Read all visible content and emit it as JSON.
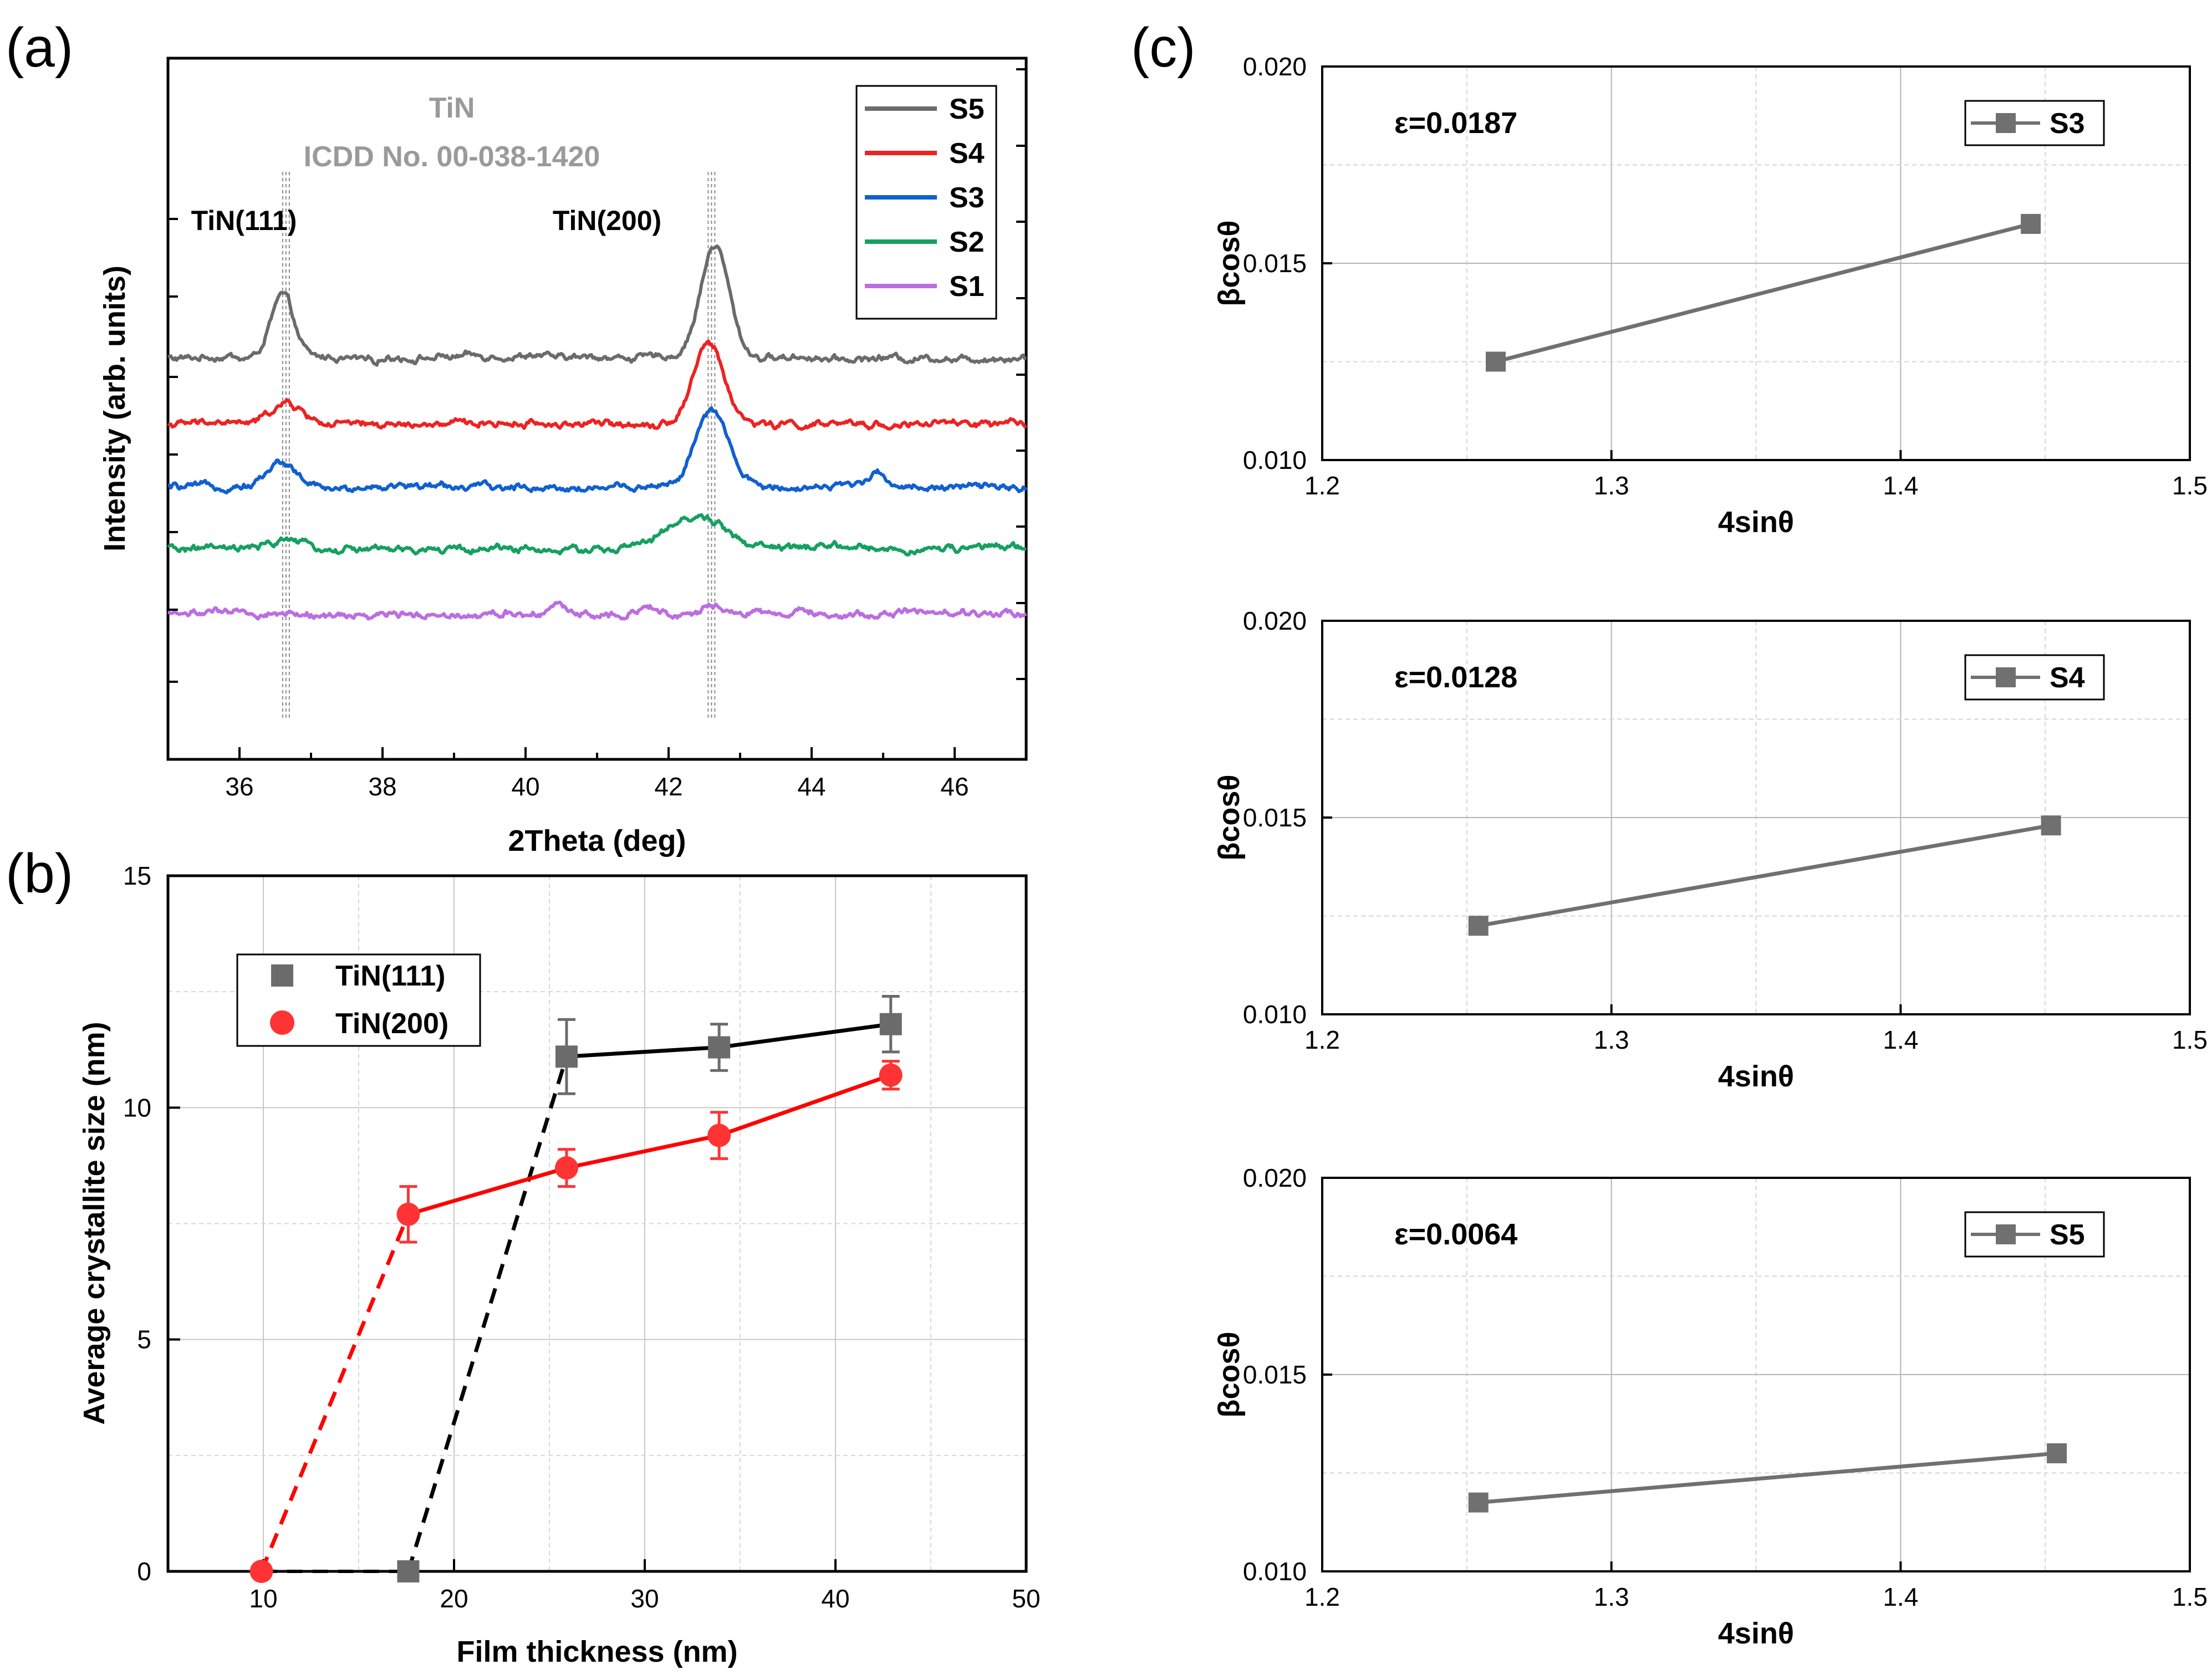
{
  "chart_data": [
    {
      "panel": "(a)",
      "type": "line",
      "xlabel": "2Theta (deg)",
      "ylabel": "Intensity (arb. units)",
      "xlim": [
        35,
        47
      ],
      "xticks": [
        36,
        38,
        40,
        42,
        44,
        46
      ],
      "reference_title": "TiN",
      "reference_card": "ICDD No. 00-038-1420",
      "peak_labels": [
        {
          "text": "TiN(111)",
          "x": 36.65
        },
        {
          "text": "TiN(200)",
          "x": 42.6
        }
      ],
      "reference_positions": [
        36.65,
        42.6
      ],
      "legend": [
        "S5",
        "S4",
        "S3",
        "S2",
        "S1"
      ],
      "colors": {
        "S5": "#6b6b6b",
        "S4": "#ee2222",
        "S3": "#1060d0",
        "S2": "#16a060",
        "S1": "#bb6ee0"
      },
      "series": [
        {
          "name": "S5",
          "baseline": 1.0,
          "peaks": [
            {
              "x": 36.6,
              "h": 0.38,
              "w": 0.22
            },
            {
              "x": 42.65,
              "h": 0.68,
              "w": 0.28
            }
          ]
        },
        {
          "name": "S4",
          "baseline": 0.6,
          "peaks": [
            {
              "x": 36.65,
              "h": 0.12,
              "w": 0.3
            },
            {
              "x": 42.55,
              "h": 0.49,
              "w": 0.3
            }
          ]
        },
        {
          "name": "S3",
          "baseline": 0.22,
          "peaks": [
            {
              "x": 36.6,
              "h": 0.15,
              "w": 0.3
            },
            {
              "x": 42.6,
              "h": 0.46,
              "w": 0.32
            },
            {
              "x": 44.9,
              "h": 0.08,
              "w": 0.2
            }
          ]
        },
        {
          "name": "S2",
          "baseline": -0.15,
          "peaks": [
            {
              "x": 36.7,
              "h": 0.06,
              "w": 0.25
            },
            {
              "x": 42.4,
              "h": 0.19,
              "w": 0.55
            }
          ]
        },
        {
          "name": "S1",
          "baseline": -0.54,
          "peaks": [
            {
              "x": 40.4,
              "h": 0.06,
              "w": 0.15
            },
            {
              "x": 41.7,
              "h": 0.05,
              "w": 0.2
            },
            {
              "x": 42.6,
              "h": 0.05,
              "w": 0.15
            }
          ]
        }
      ]
    },
    {
      "panel": "(b)",
      "type": "line",
      "xlabel": "Film thickness (nm)",
      "ylabel": "Average crystallite size (nm)",
      "xlim": [
        5,
        50
      ],
      "ylim": [
        0,
        15
      ],
      "xticks": [
        10,
        20,
        30,
        40,
        50
      ],
      "yticks": [
        0,
        5,
        10,
        15
      ],
      "series": [
        {
          "name": "TiN(111)",
          "color": "#6b6b6b",
          "line_color": "#000000",
          "marker": "square",
          "x": [
            17.6,
            25.9,
            33.9,
            42.9
          ],
          "y": [
            0,
            11.1,
            11.3,
            11.8
          ],
          "err": [
            0,
            0.8,
            0.5,
            0.6
          ],
          "dashed_from": 17.6
        },
        {
          "name": "TiN(200)",
          "color": "#ff3333",
          "line_color": "#ff0000",
          "marker": "circle",
          "x": [
            9.9,
            17.6,
            25.9,
            33.9,
            42.9
          ],
          "y": [
            0,
            7.7,
            8.7,
            9.4,
            10.7
          ],
          "err": [
            0,
            0.6,
            0.4,
            0.5,
            0.3
          ],
          "dashed_from": 9.9
        }
      ]
    },
    {
      "panel": "(c)",
      "type": "line",
      "xlabel": "4sinθ",
      "ylabel": "βcosθ",
      "xlim": [
        1.2,
        1.5
      ],
      "ylim": [
        0.01,
        0.02
      ],
      "xtick_labels": [
        "1.2",
        "1.3",
        "1.4",
        "1.5"
      ],
      "ytick_labels": [
        "0.010",
        "0.015",
        "0.020"
      ],
      "color": "#707070",
      "subplots": [
        {
          "name": "S3",
          "strain": "ε=0.0187",
          "x": [
            1.26,
            1.445
          ],
          "y": [
            0.0125,
            0.016
          ]
        },
        {
          "name": "S4",
          "strain": "ε=0.0128",
          "x": [
            1.254,
            1.452
          ],
          "y": [
            0.01225,
            0.0148
          ]
        },
        {
          "name": "S5",
          "strain": "ε=0.0064",
          "x": [
            1.254,
            1.454
          ],
          "y": [
            0.01175,
            0.013
          ]
        }
      ]
    }
  ]
}
